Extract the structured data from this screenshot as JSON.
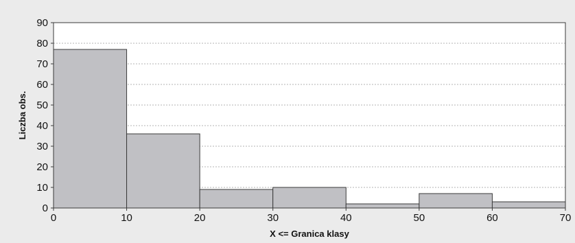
{
  "chart_data": {
    "type": "bar",
    "subtype": "histogram",
    "title": "",
    "xlabel": "X <= Granica klasy",
    "ylabel": "Liczba obs.",
    "xlim": [
      0,
      70
    ],
    "ylim": [
      0,
      90
    ],
    "x_ticks": [
      0,
      10,
      20,
      30,
      40,
      50,
      60,
      70
    ],
    "y_ticks": [
      0,
      10,
      20,
      30,
      40,
      50,
      60,
      70,
      80,
      90
    ],
    "bins": [
      {
        "x0": 0,
        "x1": 10,
        "value": 77
      },
      {
        "x0": 10,
        "x1": 20,
        "value": 36
      },
      {
        "x0": 20,
        "x1": 30,
        "value": 9
      },
      {
        "x0": 30,
        "x1": 40,
        "value": 10
      },
      {
        "x0": 40,
        "x1": 50,
        "value": 2
      },
      {
        "x0": 50,
        "x1": 60,
        "value": 7
      },
      {
        "x0": 60,
        "x1": 70,
        "value": 3
      }
    ],
    "grid": "horizontal-dashed",
    "legend": "none",
    "colors": {
      "bar_fill": "#c0c0c4",
      "bar_stroke": "#3a3a3a",
      "plot_background": "#ffffff",
      "page_background": "#ebebeb",
      "grid": "#9a9a9a"
    }
  }
}
